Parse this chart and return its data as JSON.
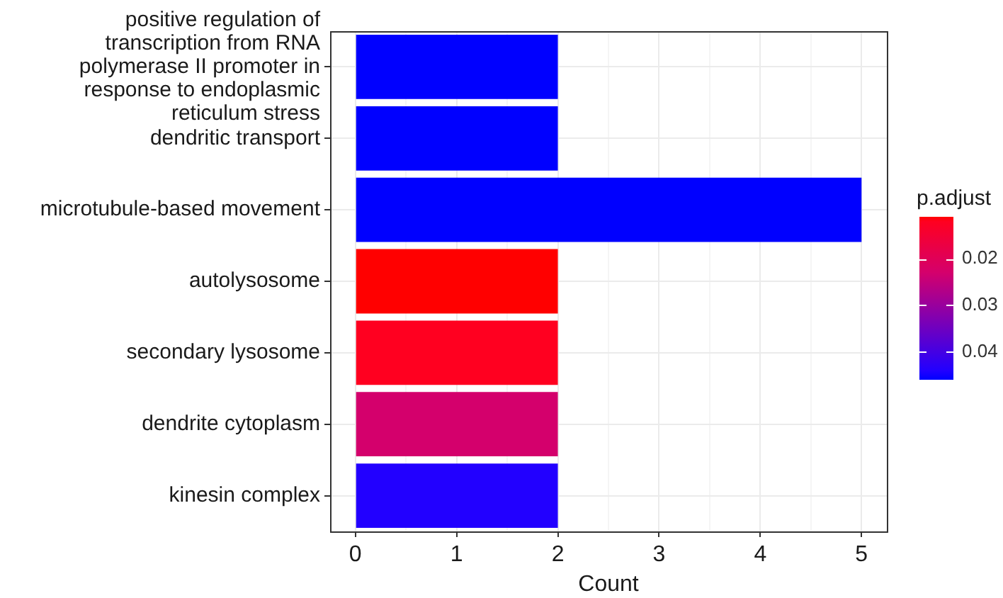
{
  "chart_data": {
    "type": "bar",
    "orientation": "horizontal",
    "categories": [
      "positive regulation of transcription from RNA polymerase II promoter in response to endoplasmic reticulum stress",
      "dendritic transport",
      "microtubule-based movement",
      "autolysosome",
      "secondary lysosome",
      "dendrite cytoplasm",
      "kinesin complex"
    ],
    "values": [
      2,
      2,
      5,
      2,
      2,
      2,
      2
    ],
    "colors": [
      "#0000ff",
      "#0000ff",
      "#0000ff",
      "#ff0000",
      "#ff0020",
      "#d4006c",
      "#2200ff"
    ],
    "cvalues": [
      0.046,
      0.046,
      0.046,
      0.011,
      0.012,
      0.023,
      0.044
    ],
    "clabel": "p.adjust",
    "clim": [
      0.046,
      0.011
    ],
    "cticks": [
      0.02,
      0.03,
      0.04
    ],
    "xlabel": "Count",
    "xlim": [
      -0.25,
      5.25
    ],
    "xticks": [
      0,
      1,
      2,
      3,
      4,
      5
    ],
    "grid": true
  }
}
